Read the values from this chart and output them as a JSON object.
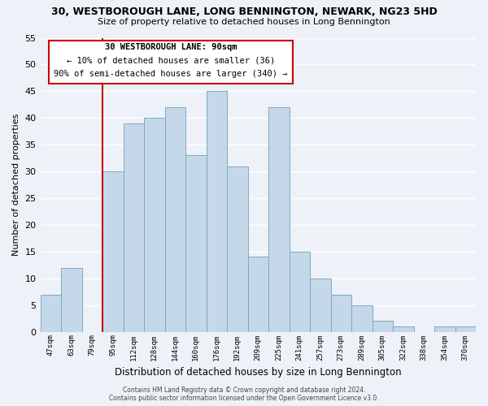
{
  "title": "30, WESTBOROUGH LANE, LONG BENNINGTON, NEWARK, NG23 5HD",
  "subtitle": "Size of property relative to detached houses in Long Bennington",
  "xlabel": "Distribution of detached houses by size in Long Bennington",
  "ylabel": "Number of detached properties",
  "bar_labels": [
    "47sqm",
    "63sqm",
    "79sqm",
    "95sqm",
    "112sqm",
    "128sqm",
    "144sqm",
    "160sqm",
    "176sqm",
    "192sqm",
    "209sqm",
    "225sqm",
    "241sqm",
    "257sqm",
    "273sqm",
    "289sqm",
    "305sqm",
    "322sqm",
    "338sqm",
    "354sqm",
    "370sqm"
  ],
  "bar_values": [
    7,
    12,
    0,
    30,
    39,
    40,
    42,
    33,
    45,
    31,
    14,
    42,
    15,
    10,
    7,
    5,
    2,
    1,
    0,
    1,
    1
  ],
  "bar_color": "#c5d8ea",
  "bar_edge_color": "#7baabf",
  "property_line_label": "30 WESTBOROUGH LANE: 90sqm",
  "annotation_line1": "← 10% of detached houses are smaller (36)",
  "annotation_line2": "90% of semi-detached houses are larger (340) →",
  "box_edge_color": "#cc0000",
  "ylim": [
    0,
    55
  ],
  "yticks": [
    0,
    5,
    10,
    15,
    20,
    25,
    30,
    35,
    40,
    45,
    50,
    55
  ],
  "background_color": "#eef2f8",
  "grid_color": "#ffffff",
  "footer_line1": "Contains HM Land Registry data © Crown copyright and database right 2024.",
  "footer_line2": "Contains public sector information licensed under the Open Government Licence v3.0."
}
